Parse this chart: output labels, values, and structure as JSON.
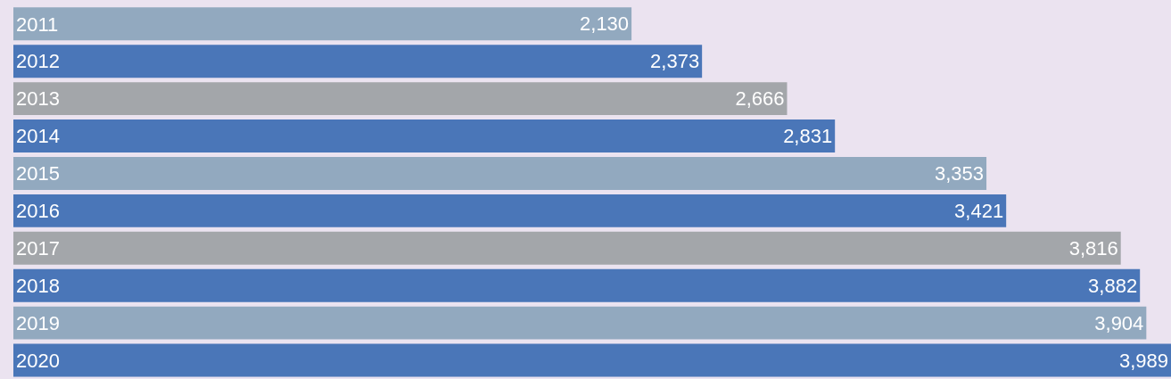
{
  "chart_data": {
    "type": "bar",
    "orientation": "horizontal",
    "categories": [
      "2011",
      "2012",
      "2013",
      "2014",
      "2015",
      "2016",
      "2017",
      "2018",
      "2019",
      "2020"
    ],
    "values": [
      2130,
      2373,
      2666,
      2831,
      3353,
      3421,
      3816,
      3882,
      3904,
      3989
    ],
    "value_labels": [
      "2,130",
      "2,373",
      "2,666",
      "2,831",
      "3,353",
      "3,421",
      "3,816",
      "3,882",
      "3,904",
      "3,989"
    ],
    "colors": [
      "#92a9bf",
      "#4a76b8",
      "#a3a6aa",
      "#4a76b8",
      "#92a9bf",
      "#4a76b8",
      "#a3a6aa",
      "#4a76b8",
      "#92a9bf",
      "#4a76b8"
    ],
    "legend": false
  }
}
